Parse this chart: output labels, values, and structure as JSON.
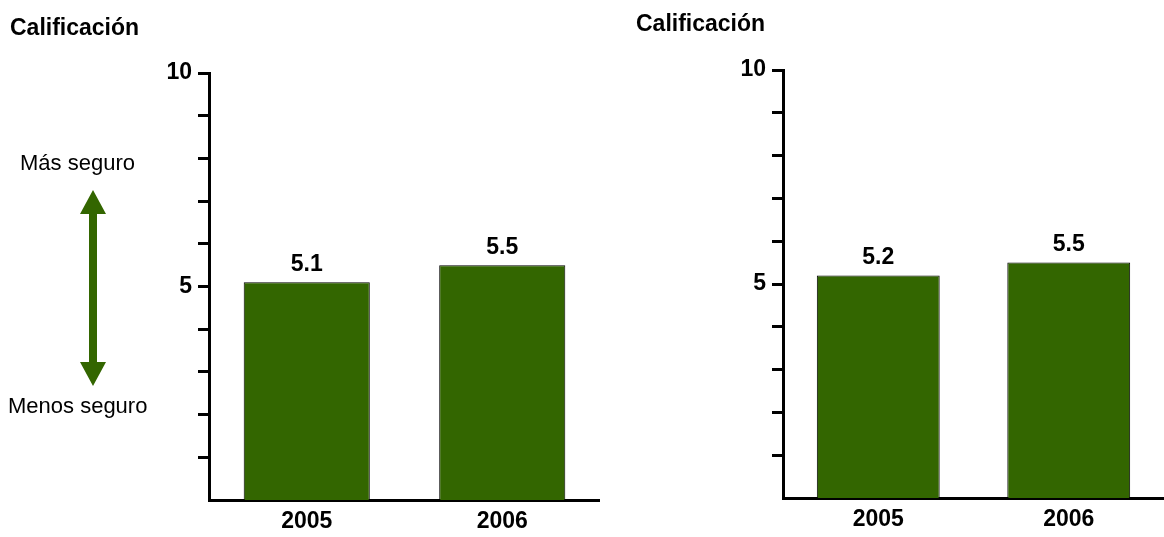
{
  "chart_data": [
    {
      "type": "bar",
      "ylabel": "Calificación",
      "categories": [
        "2005",
        "2006"
      ],
      "values": [
        5.1,
        5.5
      ],
      "color": "#336600",
      "ylim": [
        0,
        10
      ],
      "yticks": [
        {
          "value": 1,
          "label": null
        },
        {
          "value": 2,
          "label": null
        },
        {
          "value": 3,
          "label": null
        },
        {
          "value": 4,
          "label": null
        },
        {
          "value": 5,
          "label": "5"
        },
        {
          "value": 6,
          "label": null
        },
        {
          "value": 7,
          "label": null
        },
        {
          "value": 8,
          "label": null
        },
        {
          "value": 9,
          "label": null
        },
        {
          "value": 10,
          "label": "10"
        }
      ],
      "data_labels": true,
      "grid": false,
      "legend": false,
      "annotations": [
        "Más seguro",
        "Menos seguro"
      ]
    },
    {
      "type": "bar",
      "ylabel": "Calificación",
      "categories": [
        "2005",
        "2006"
      ],
      "values": [
        5.2,
        5.5
      ],
      "color": "#336600",
      "ylim": [
        0,
        10
      ],
      "yticks": [
        {
          "value": 1,
          "label": null
        },
        {
          "value": 2,
          "label": null
        },
        {
          "value": 3,
          "label": null
        },
        {
          "value": 4,
          "label": null
        },
        {
          "value": 5,
          "label": "5"
        },
        {
          "value": 6,
          "label": null
        },
        {
          "value": 7,
          "label": null
        },
        {
          "value": 8,
          "label": null
        },
        {
          "value": 9,
          "label": null
        },
        {
          "value": 10,
          "label": "10"
        }
      ],
      "data_labels": true,
      "grid": false,
      "legend": false
    }
  ]
}
